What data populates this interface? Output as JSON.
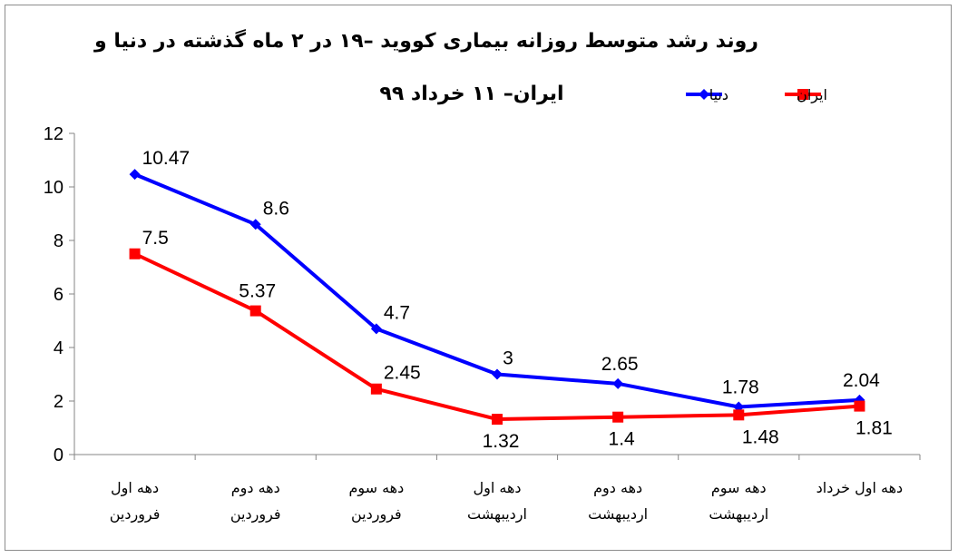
{
  "chart_data": {
    "type": "line",
    "title": [
      "روند رشد متوسط روزانه بیماری کووید –۱۹ در ۲ ماه گذشته در دنیا و",
      "ایران– ۱۱ خرداد ۹۹"
    ],
    "categories": [
      [
        "دهه اول",
        "فروردین"
      ],
      [
        "دهه دوم",
        "فروردین"
      ],
      [
        "دهه سوم",
        "فروردین"
      ],
      [
        "دهه اول",
        "اردیبهشت"
      ],
      [
        "دهه دوم",
        "اردیبهشت"
      ],
      [
        "دهه سوم",
        "اردیبهشت"
      ],
      [
        "دهه اول خرداد"
      ]
    ],
    "series": [
      {
        "name": "دنیا",
        "color": "#0000ff",
        "marker": "diamond",
        "values": [
          10.47,
          8.6,
          4.7,
          3,
          2.65,
          1.78,
          2.04
        ],
        "labels": [
          "10.47",
          "8.6",
          "4.7",
          "3",
          "2.65",
          "1.78",
          "2.04"
        ],
        "label_position": "above"
      },
      {
        "name": "ایران",
        "color": "#ff0000",
        "marker": "square",
        "values": [
          7.5,
          5.37,
          2.45,
          1.32,
          1.4,
          1.48,
          1.81
        ],
        "labels": [
          "7.5",
          "5.37",
          "2.45",
          "1.32",
          "1.4",
          "1.48",
          "1.81"
        ],
        "label_position": [
          "above",
          "above",
          "above",
          "below",
          "below",
          "below",
          "below"
        ]
      }
    ],
    "ylim": [
      0,
      12
    ],
    "yticks": [
      0,
      2,
      4,
      6,
      8,
      10,
      12
    ],
    "xlabel": "",
    "ylabel": "",
    "grid": false,
    "legend_position": "top-right"
  }
}
